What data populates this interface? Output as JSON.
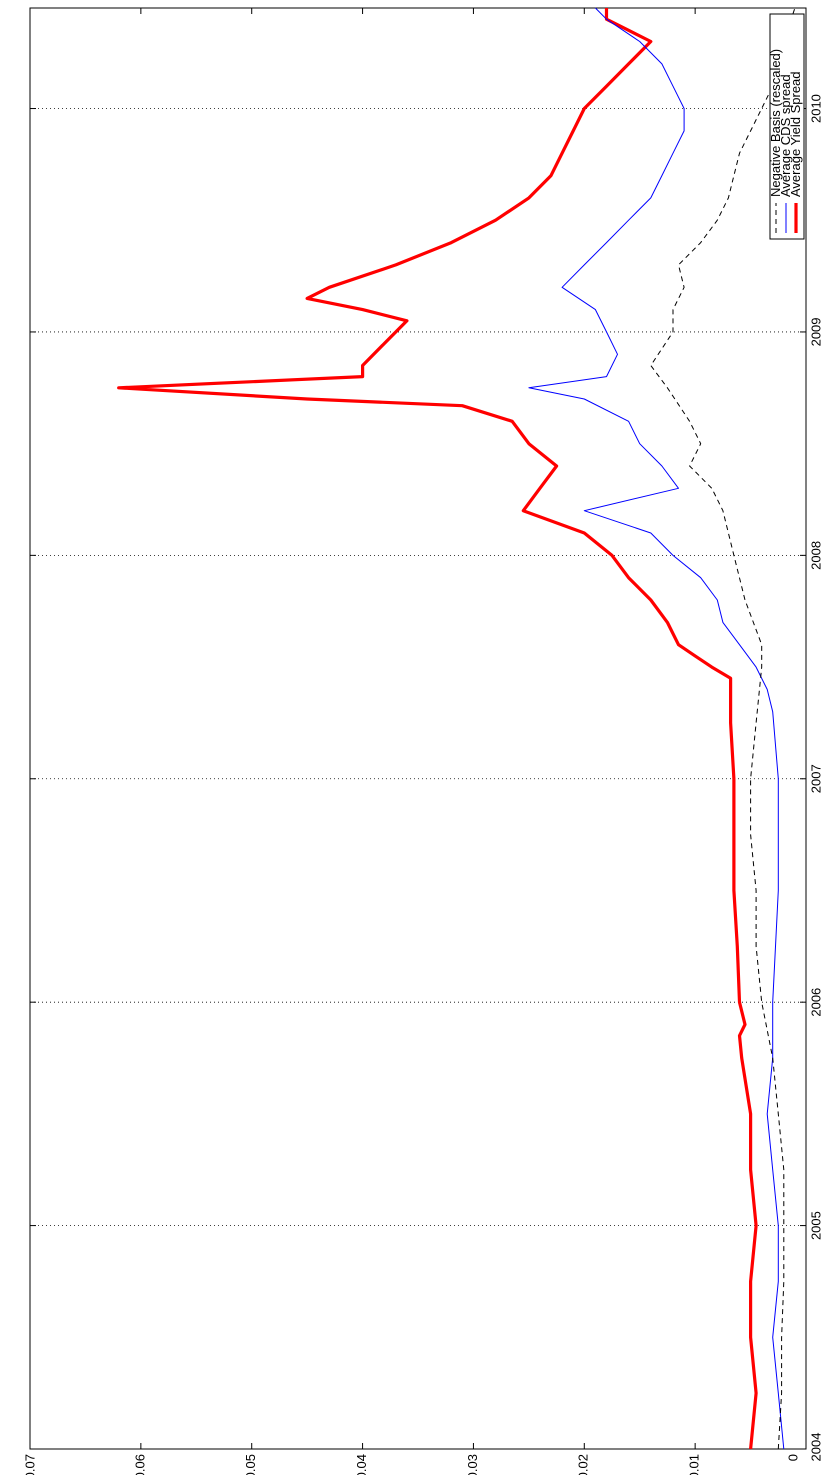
{
  "chart_data": {
    "type": "line",
    "title": "",
    "xlabel": "",
    "ylabel": "",
    "orientation": "rotated-90",
    "xlim": [
      2004,
      2010.45
    ],
    "ylim": [
      0,
      0.07
    ],
    "xticks": [
      "2004",
      "2005",
      "2006",
      "2007",
      "2008",
      "2009",
      "2010"
    ],
    "yticks": [
      "0",
      "0.01",
      "0.02",
      "0.03",
      "0.04",
      "0.05",
      "0.06",
      "0.07"
    ],
    "grid": "x-dotted",
    "legend_position": "top-right",
    "series": [
      {
        "name": "Average Yield Spread",
        "color": "#ff0000",
        "style": "solid-thick",
        "x": [
          2004.0,
          2004.25,
          2004.5,
          2004.75,
          2005.0,
          2005.25,
          2005.5,
          2005.75,
          2005.85,
          2005.9,
          2006.0,
          2006.25,
          2006.5,
          2006.75,
          2007.0,
          2007.25,
          2007.45,
          2007.5,
          2007.55,
          2007.6,
          2007.7,
          2007.8,
          2007.9,
          2008.0,
          2008.1,
          2008.2,
          2008.3,
          2008.4,
          2008.5,
          2008.6,
          2008.67,
          2008.7,
          2008.75,
          2008.8,
          2008.85,
          2008.95,
          2009.05,
          2009.1,
          2009.15,
          2009.2,
          2009.3,
          2009.4,
          2009.5,
          2009.6,
          2009.7,
          2009.8,
          2009.9,
          2010.0,
          2010.1,
          2010.2,
          2010.3,
          2010.4,
          2010.45
        ],
        "y": [
          0.005,
          0.0045,
          0.005,
          0.005,
          0.0045,
          0.005,
          0.005,
          0.0058,
          0.006,
          0.0055,
          0.006,
          0.0062,
          0.0065,
          0.0065,
          0.0065,
          0.0068,
          0.0068,
          0.0085,
          0.01,
          0.0115,
          0.0125,
          0.014,
          0.016,
          0.0175,
          0.02,
          0.0255,
          0.024,
          0.0225,
          0.025,
          0.0265,
          0.031,
          0.045,
          0.062,
          0.04,
          0.04,
          0.038,
          0.036,
          0.04,
          0.045,
          0.043,
          0.037,
          0.032,
          0.028,
          0.025,
          0.023,
          0.022,
          0.021,
          0.02,
          0.018,
          0.016,
          0.014,
          0.018,
          0.018
        ]
      },
      {
        "name": "Average CDS spread",
        "color": "#0000ff",
        "style": "solid-thin",
        "x": [
          2004.0,
          2004.25,
          2004.5,
          2004.75,
          2005.0,
          2005.25,
          2005.5,
          2005.75,
          2006.0,
          2006.5,
          2007.0,
          2007.3,
          2007.4,
          2007.5,
          2007.6,
          2007.7,
          2007.8,
          2007.9,
          2008.0,
          2008.1,
          2008.15,
          2008.2,
          2008.3,
          2008.4,
          2008.5,
          2008.6,
          2008.7,
          2008.75,
          2008.8,
          2008.9,
          2009.0,
          2009.1,
          2009.2,
          2009.3,
          2009.4,
          2009.5,
          2009.6,
          2009.7,
          2009.8,
          2009.9,
          2010.0,
          2010.1,
          2010.2,
          2010.3,
          2010.4,
          2010.45
        ],
        "y": [
          0.002,
          0.0025,
          0.003,
          0.0025,
          0.0025,
          0.003,
          0.0035,
          0.003,
          0.003,
          0.0025,
          0.0025,
          0.003,
          0.0035,
          0.0045,
          0.006,
          0.0075,
          0.008,
          0.0095,
          0.012,
          0.014,
          0.017,
          0.02,
          0.0115,
          0.013,
          0.015,
          0.016,
          0.02,
          0.025,
          0.018,
          0.017,
          0.018,
          0.019,
          0.022,
          0.02,
          0.018,
          0.016,
          0.014,
          0.013,
          0.012,
          0.011,
          0.011,
          0.012,
          0.013,
          0.015,
          0.018,
          0.019
        ]
      },
      {
        "name": "Negative Basis (rescaled)",
        "color": "#000000",
        "style": "dashed",
        "x": [
          2004.0,
          2004.25,
          2004.5,
          2004.75,
          2005.0,
          2005.25,
          2005.5,
          2005.75,
          2006.0,
          2006.25,
          2006.5,
          2006.75,
          2007.0,
          2007.25,
          2007.5,
          2007.6,
          2007.8,
          2008.0,
          2008.2,
          2008.3,
          2008.4,
          2008.5,
          2008.6,
          2008.75,
          2008.85,
          2009.0,
          2009.1,
          2009.2,
          2009.3,
          2009.4,
          2009.5,
          2009.6,
          2009.7,
          2009.8,
          2009.9,
          2010.0,
          2010.1,
          2010.2,
          2010.3,
          2010.45
        ],
        "y": [
          0.0025,
          0.0022,
          0.0022,
          0.002,
          0.002,
          0.002,
          0.0025,
          0.003,
          0.004,
          0.0045,
          0.0045,
          0.005,
          0.005,
          0.0045,
          0.004,
          0.004,
          0.0055,
          0.0065,
          0.0075,
          0.0085,
          0.0105,
          0.0095,
          0.0105,
          0.0125,
          0.014,
          0.012,
          0.012,
          0.011,
          0.0115,
          0.0095,
          0.008,
          0.007,
          0.0065,
          0.006,
          0.005,
          0.004,
          0.003,
          0.0025,
          0.002,
          0.001
        ]
      }
    ]
  }
}
